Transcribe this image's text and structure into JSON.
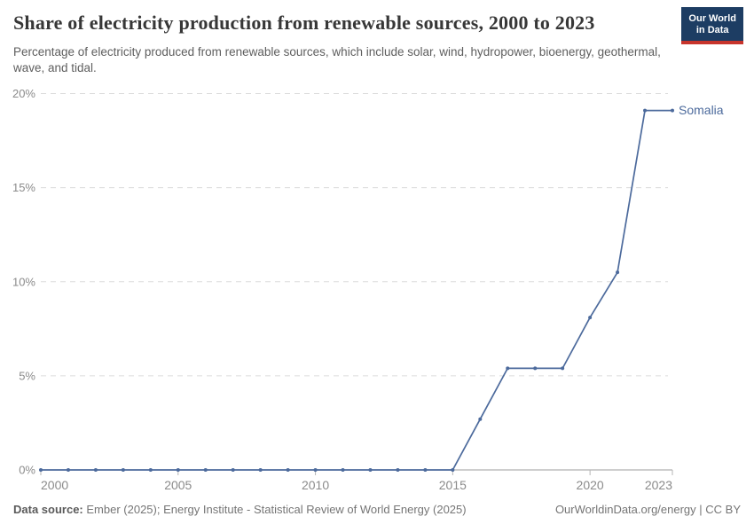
{
  "header": {
    "title": "Share of electricity production from renewable sources, 2000 to 2023",
    "subtitle": "Percentage of electricity produced from renewable sources, which include solar, wind, hydropower, bioenergy, geothermal, wave, and tidal.",
    "logo_line1": "Our World",
    "logo_line2": "in Data"
  },
  "footer": {
    "source_label": "Data source:",
    "source_value": "Ember (2025); Energy Institute - Statistical Review of World Energy (2025)",
    "credit": "OurWorldinData.org/energy | CC BY"
  },
  "colors": {
    "series_line": "#4C6A9C",
    "gridline": "#dcdcdc",
    "zero_line": "#9e9e9e",
    "tick_text": "#8b8b8b",
    "logo_bg": "#1d3d63",
    "logo_accent": "#c7342c"
  },
  "chart_data": {
    "type": "line",
    "title": "Share of electricity production from renewable sources, 2000 to 2023",
    "xlabel": "",
    "ylabel": "",
    "xlim": [
      2000,
      2023
    ],
    "ylim": [
      0,
      20
    ],
    "x_ticks": [
      2000,
      2005,
      2010,
      2015,
      2020,
      2023
    ],
    "y_ticks": [
      0,
      5,
      10,
      15,
      20
    ],
    "y_suffix": "%",
    "grid": "horizontal-dashed",
    "legend_position": "end-of-line-label",
    "series": [
      {
        "name": "Somalia",
        "color": "#4C6A9C",
        "x": [
          2000,
          2001,
          2002,
          2003,
          2004,
          2005,
          2006,
          2007,
          2008,
          2009,
          2010,
          2011,
          2012,
          2013,
          2014,
          2015,
          2016,
          2017,
          2018,
          2019,
          2020,
          2021,
          2022,
          2023
        ],
        "values": [
          0,
          0,
          0,
          0,
          0,
          0,
          0,
          0,
          0,
          0,
          0,
          0,
          0,
          0,
          0,
          0,
          2.7,
          5.4,
          5.4,
          5.4,
          8.1,
          10.5,
          19.1,
          19.1
        ]
      }
    ]
  }
}
